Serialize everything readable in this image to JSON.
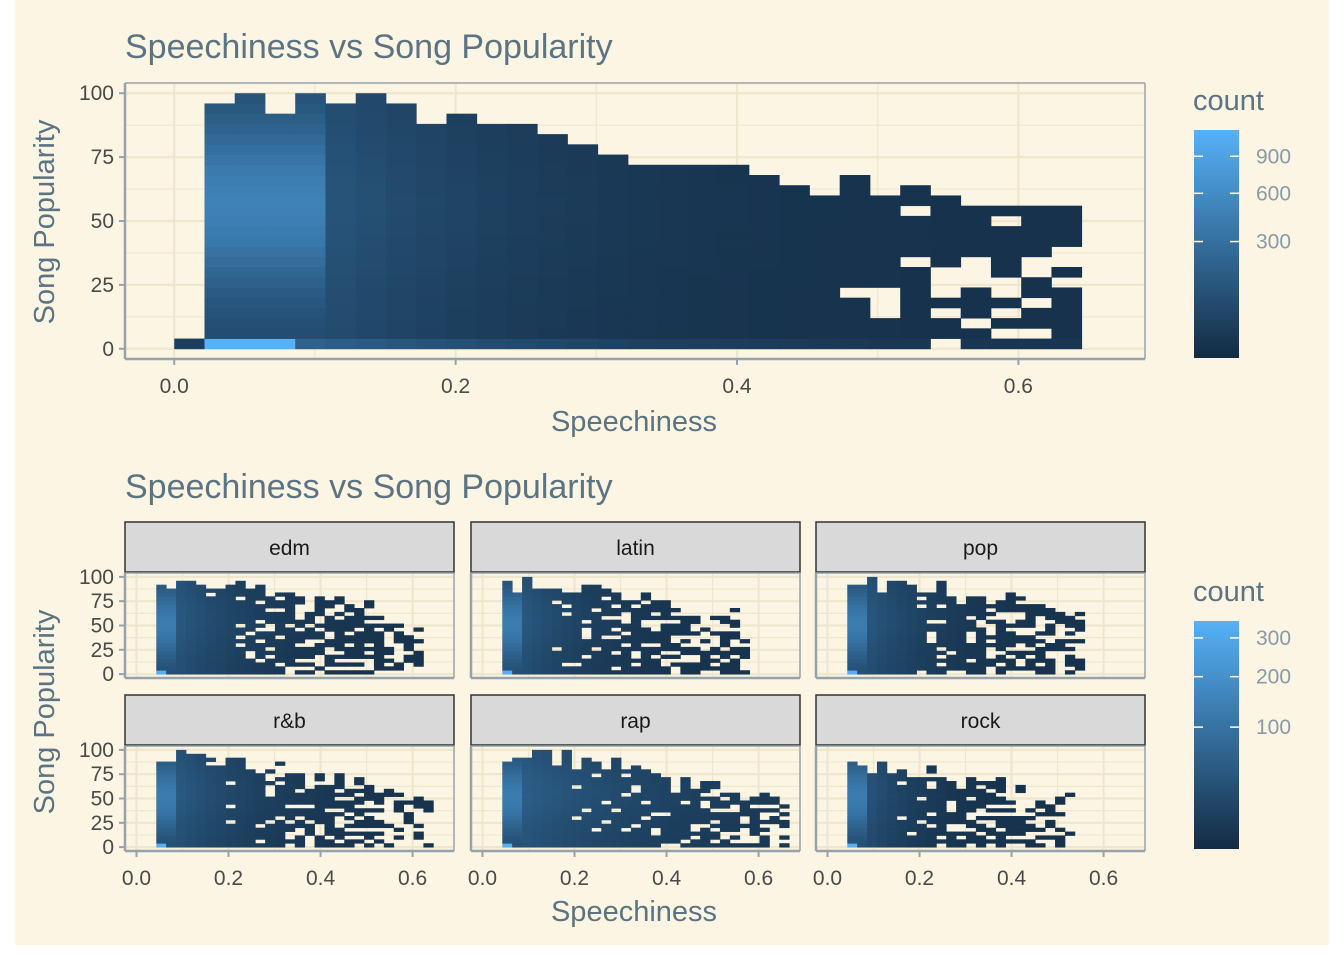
{
  "colors": {
    "plot_background": "#fcf5e3",
    "grid": "#efe6ce",
    "axis_line": "#95a3ab",
    "strip_fill": "#d9d9d9",
    "strip_border": "#333333",
    "low": "#132b43",
    "high": "#56b1f7"
  },
  "chart_data": [
    {
      "type": "heatmap",
      "title": "Speechiness vs Song Popularity",
      "xlabel": "Speechiness",
      "ylabel": "Song Popularity",
      "x_ticks": [
        "0.0",
        "0.2",
        "0.4",
        "0.6"
      ],
      "y_ticks": [
        "0",
        "25",
        "50",
        "75",
        "100"
      ],
      "xlim": [
        -0.035,
        0.69
      ],
      "ylim": [
        -4,
        104
      ],
      "bins": {
        "x_width": 0.0215,
        "y_height": 4
      },
      "legend": {
        "title": "count",
        "ticks": [
          "300",
          "600",
          "900"
        ],
        "tick_values": [
          300,
          600,
          900
        ],
        "min": 1,
        "max": 1150
      },
      "max_count": 1150
    },
    {
      "type": "heatmap",
      "title": "Speechiness vs Song Popularity",
      "xlabel": "Speechiness",
      "ylabel": "Song Popularity",
      "facets": [
        "edm",
        "latin",
        "pop",
        "r&b",
        "rap",
        "rock"
      ],
      "x_ticks": [
        "0.0",
        "0.2",
        "0.4",
        "0.6"
      ],
      "y_ticks": [
        "0",
        "25",
        "50",
        "75",
        "100"
      ],
      "xlim": [
        -0.025,
        0.69
      ],
      "ylim": [
        -4,
        104
      ],
      "bins": {
        "x_width": 0.0215,
        "y_height": 4
      },
      "legend": {
        "title": "count",
        "ticks": [
          "100",
          "200",
          "300"
        ],
        "tick_values": [
          100,
          200,
          300
        ],
        "min": 1,
        "max": 350
      },
      "max_count": 350
    }
  ]
}
